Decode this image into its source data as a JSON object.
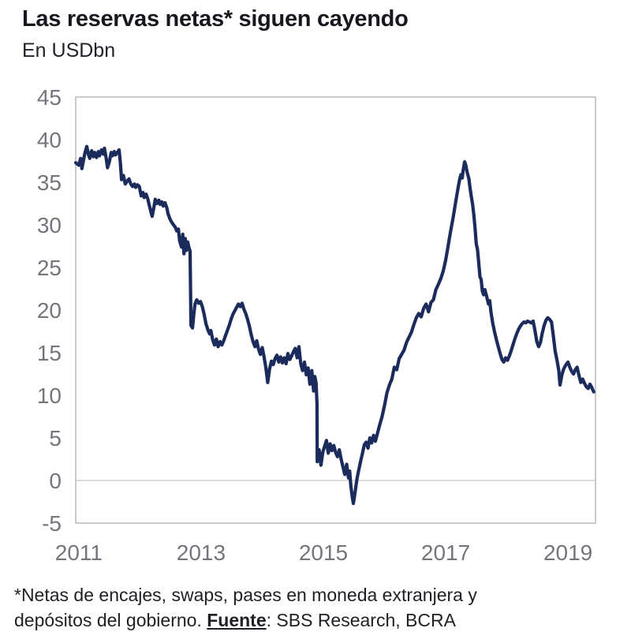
{
  "header": {
    "title": "Las reservas netas* siguen cayendo",
    "subtitle": "En USDbn"
  },
  "footnote": {
    "line1": "*Netas de encajes, swaps, pases en moneda extranjera y",
    "line2_before": "depósitos del gobierno. ",
    "source_label": "Fuente",
    "line2_after": ": SBS Research, BCRA"
  },
  "colors": {
    "line": "#1b2c5c",
    "plot_border": "#bdbdbd",
    "zero_gridline": "#cfcfcf",
    "tick_label": "#75757d",
    "title_text": "#17171f",
    "background": "#ffffff"
  },
  "chart_data": {
    "type": "line",
    "title": "Las reservas netas* siguen cayendo",
    "unit": "En USDbn",
    "xlabel": "",
    "ylabel": "",
    "xlim": [
      2010.95,
      2019.45
    ],
    "ylim": [
      -5,
      45
    ],
    "yticks": [
      45,
      40,
      35,
      30,
      25,
      20,
      15,
      10,
      5,
      0,
      -5
    ],
    "xticks": [
      2011,
      2013,
      2015,
      2017,
      2019
    ],
    "grid": "horizontal line at 0 only",
    "legend": "none",
    "series": [
      {
        "name": "Reservas netas (USDbn)",
        "points": [
          [
            2010.95,
            37.3
          ],
          [
            2011.0,
            37.0
          ],
          [
            2011.03,
            37.8
          ],
          [
            2011.05,
            36.6
          ],
          [
            2011.08,
            37.7
          ],
          [
            2011.1,
            38.4
          ],
          [
            2011.13,
            39.2
          ],
          [
            2011.16,
            38.2
          ],
          [
            2011.18,
            37.8
          ],
          [
            2011.21,
            38.7
          ],
          [
            2011.24,
            38.0
          ],
          [
            2011.26,
            38.5
          ],
          [
            2011.29,
            37.9
          ],
          [
            2011.32,
            38.6
          ],
          [
            2011.34,
            38.1
          ],
          [
            2011.37,
            38.8
          ],
          [
            2011.4,
            38.3
          ],
          [
            2011.42,
            39.0
          ],
          [
            2011.45,
            37.7
          ],
          [
            2011.47,
            36.7
          ],
          [
            2011.5,
            37.4
          ],
          [
            2011.53,
            38.5
          ],
          [
            2011.55,
            38.1
          ],
          [
            2011.58,
            38.6
          ],
          [
            2011.6,
            38.2
          ],
          [
            2011.63,
            38.5
          ],
          [
            2011.66,
            38.8
          ],
          [
            2011.68,
            37.3
          ],
          [
            2011.7,
            35.3
          ],
          [
            2011.73,
            35.8
          ],
          [
            2011.76,
            34.8
          ],
          [
            2011.79,
            35.1
          ],
          [
            2011.82,
            35.4
          ],
          [
            2011.85,
            34.8
          ],
          [
            2011.88,
            34.5
          ],
          [
            2011.91,
            34.8
          ],
          [
            2011.93,
            34.4
          ],
          [
            2011.96,
            34.7
          ],
          [
            2011.99,
            34.5
          ],
          [
            2012.02,
            33.4
          ],
          [
            2012.05,
            33.8
          ],
          [
            2012.07,
            33.2
          ],
          [
            2012.1,
            33.6
          ],
          [
            2012.13,
            33.0
          ],
          [
            2012.15,
            32.4
          ],
          [
            2012.18,
            31.5
          ],
          [
            2012.2,
            31.0
          ],
          [
            2012.23,
            32.1
          ],
          [
            2012.25,
            33.0
          ],
          [
            2012.28,
            32.5
          ],
          [
            2012.31,
            32.9
          ],
          [
            2012.33,
            32.4
          ],
          [
            2012.36,
            32.7
          ],
          [
            2012.38,
            32.2
          ],
          [
            2012.41,
            32.6
          ],
          [
            2012.44,
            32.0
          ],
          [
            2012.46,
            31.3
          ],
          [
            2012.49,
            30.7
          ],
          [
            2012.52,
            30.3
          ],
          [
            2012.55,
            30.0
          ],
          [
            2012.58,
            29.7
          ],
          [
            2012.6,
            29.3
          ],
          [
            2012.63,
            29.5
          ],
          [
            2012.65,
            28.1
          ],
          [
            2012.68,
            27.4
          ],
          [
            2012.7,
            28.9
          ],
          [
            2012.72,
            26.6
          ],
          [
            2012.74,
            28.4
          ],
          [
            2012.76,
            27.0
          ],
          [
            2012.78,
            28.0
          ],
          [
            2012.8,
            27.4
          ],
          [
            2012.82,
            26.9
          ],
          [
            2012.835,
            18.2
          ],
          [
            2012.86,
            17.9
          ],
          [
            2012.88,
            19.4
          ],
          [
            2012.9,
            20.7
          ],
          [
            2012.93,
            21.2
          ],
          [
            2012.96,
            20.8
          ],
          [
            2012.99,
            21.0
          ],
          [
            2013.02,
            20.4
          ],
          [
            2013.05,
            19.5
          ],
          [
            2013.08,
            18.4
          ],
          [
            2013.11,
            17.7
          ],
          [
            2013.14,
            17.2
          ],
          [
            2013.16,
            17.6
          ],
          [
            2013.19,
            16.5
          ],
          [
            2013.22,
            15.9
          ],
          [
            2013.25,
            16.6
          ],
          [
            2013.28,
            15.7
          ],
          [
            2013.31,
            16.3
          ],
          [
            2013.34,
            15.9
          ],
          [
            2013.37,
            16.4
          ],
          [
            2013.4,
            17.0
          ],
          [
            2013.43,
            17.6
          ],
          [
            2013.46,
            18.2
          ],
          [
            2013.49,
            18.9
          ],
          [
            2013.52,
            19.5
          ],
          [
            2013.55,
            19.9
          ],
          [
            2013.58,
            20.3
          ],
          [
            2013.61,
            20.7
          ],
          [
            2013.64,
            20.4
          ],
          [
            2013.67,
            20.8
          ],
          [
            2013.7,
            20.1
          ],
          [
            2013.73,
            19.6
          ],
          [
            2013.76,
            18.9
          ],
          [
            2013.79,
            18.1
          ],
          [
            2013.82,
            17.1
          ],
          [
            2013.85,
            16.3
          ],
          [
            2013.88,
            15.7
          ],
          [
            2013.91,
            16.4
          ],
          [
            2013.94,
            15.4
          ],
          [
            2013.97,
            14.8
          ],
          [
            2014.0,
            15.6
          ],
          [
            2014.03,
            14.5
          ],
          [
            2014.06,
            13.2
          ],
          [
            2014.09,
            11.5
          ],
          [
            2014.12,
            13.1
          ],
          [
            2014.15,
            14.0
          ],
          [
            2014.18,
            13.6
          ],
          [
            2014.21,
            14.3
          ],
          [
            2014.24,
            14.7
          ],
          [
            2014.27,
            13.9
          ],
          [
            2014.3,
            14.5
          ],
          [
            2014.33,
            13.8
          ],
          [
            2014.36,
            14.4
          ],
          [
            2014.39,
            13.7
          ],
          [
            2014.42,
            14.9
          ],
          [
            2014.45,
            14.2
          ],
          [
            2014.48,
            14.6
          ],
          [
            2014.51,
            15.1
          ],
          [
            2014.54,
            15.5
          ],
          [
            2014.57,
            14.4
          ],
          [
            2014.6,
            15.7
          ],
          [
            2014.63,
            13.7
          ],
          [
            2014.66,
            12.9
          ],
          [
            2014.69,
            13.9
          ],
          [
            2014.72,
            12.4
          ],
          [
            2014.75,
            13.2
          ],
          [
            2014.78,
            11.3
          ],
          [
            2014.81,
            12.9
          ],
          [
            2014.84,
            10.5
          ],
          [
            2014.86,
            12.2
          ],
          [
            2014.88,
            11.5
          ],
          [
            2014.895,
            9.0
          ],
          [
            2014.9,
            2.2
          ],
          [
            2014.93,
            3.6
          ],
          [
            2014.96,
            1.8
          ],
          [
            2014.99,
            3.3
          ],
          [
            2015.02,
            4.0
          ],
          [
            2015.05,
            4.7
          ],
          [
            2015.08,
            3.2
          ],
          [
            2015.11,
            4.3
          ],
          [
            2015.14,
            3.5
          ],
          [
            2015.17,
            4.1
          ],
          [
            2015.2,
            3.3
          ],
          [
            2015.23,
            2.8
          ],
          [
            2015.26,
            3.6
          ],
          [
            2015.29,
            2.5
          ],
          [
            2015.32,
            1.6
          ],
          [
            2015.35,
            0.7
          ],
          [
            2015.38,
            1.9
          ],
          [
            2015.41,
            0.3
          ],
          [
            2015.43,
            1.1
          ],
          [
            2015.45,
            -0.7
          ],
          [
            2015.47,
            -1.8
          ],
          [
            2015.49,
            -2.7
          ],
          [
            2015.52,
            -1.3
          ],
          [
            2015.55,
            0.2
          ],
          [
            2015.58,
            1.3
          ],
          [
            2015.61,
            2.3
          ],
          [
            2015.64,
            3.2
          ],
          [
            2015.67,
            4.2
          ],
          [
            2015.7,
            4.5
          ],
          [
            2015.73,
            3.8
          ],
          [
            2015.76,
            5.0
          ],
          [
            2015.79,
            4.4
          ],
          [
            2015.82,
            5.3
          ],
          [
            2015.85,
            4.6
          ],
          [
            2015.88,
            5.4
          ],
          [
            2015.92,
            6.5
          ],
          [
            2015.96,
            7.5
          ],
          [
            2016.0,
            8.8
          ],
          [
            2016.04,
            10.3
          ],
          [
            2016.08,
            11.2
          ],
          [
            2016.12,
            11.9
          ],
          [
            2016.16,
            13.3
          ],
          [
            2016.2,
            13.0
          ],
          [
            2016.24,
            14.3
          ],
          [
            2016.28,
            14.8
          ],
          [
            2016.32,
            15.3
          ],
          [
            2016.36,
            16.2
          ],
          [
            2016.4,
            16.8
          ],
          [
            2016.44,
            17.4
          ],
          [
            2016.48,
            18.3
          ],
          [
            2016.52,
            19.1
          ],
          [
            2016.56,
            19.6
          ],
          [
            2016.6,
            19.2
          ],
          [
            2016.64,
            20.2
          ],
          [
            2016.68,
            20.7
          ],
          [
            2016.72,
            19.8
          ],
          [
            2016.76,
            20.9
          ],
          [
            2016.8,
            21.2
          ],
          [
            2016.84,
            22.4
          ],
          [
            2016.88,
            23.0
          ],
          [
            2016.92,
            23.7
          ],
          [
            2016.96,
            24.6
          ],
          [
            2017.0,
            25.9
          ],
          [
            2017.03,
            27.1
          ],
          [
            2017.06,
            28.4
          ],
          [
            2017.09,
            29.6
          ],
          [
            2017.12,
            30.8
          ],
          [
            2017.15,
            32.1
          ],
          [
            2017.18,
            33.4
          ],
          [
            2017.21,
            34.6
          ],
          [
            2017.23,
            35.4
          ],
          [
            2017.25,
            35.9
          ],
          [
            2017.27,
            35.5
          ],
          [
            2017.29,
            36.6
          ],
          [
            2017.31,
            37.4
          ],
          [
            2017.33,
            37.0
          ],
          [
            2017.35,
            36.2
          ],
          [
            2017.38,
            35.4
          ],
          [
            2017.4,
            34.2
          ],
          [
            2017.42,
            33.3
          ],
          [
            2017.44,
            32.4
          ],
          [
            2017.46,
            31.2
          ],
          [
            2017.48,
            29.6
          ],
          [
            2017.5,
            27.8
          ],
          [
            2017.52,
            27.1
          ],
          [
            2017.54,
            25.6
          ],
          [
            2017.56,
            23.9
          ],
          [
            2017.58,
            23.6
          ],
          [
            2017.6,
            22.2
          ],
          [
            2017.62,
            21.8
          ],
          [
            2017.64,
            22.4
          ],
          [
            2017.67,
            21.6
          ],
          [
            2017.7,
            20.7
          ],
          [
            2017.72,
            21.1
          ],
          [
            2017.74,
            19.8
          ],
          [
            2017.77,
            18.4
          ],
          [
            2017.8,
            17.4
          ],
          [
            2017.83,
            16.5
          ],
          [
            2017.86,
            15.7
          ],
          [
            2017.89,
            14.9
          ],
          [
            2017.92,
            14.2
          ],
          [
            2017.95,
            13.9
          ],
          [
            2017.98,
            14.4
          ],
          [
            2018.01,
            14.1
          ],
          [
            2018.04,
            14.6
          ],
          [
            2018.07,
            15.2
          ],
          [
            2018.1,
            15.9
          ],
          [
            2018.13,
            16.6
          ],
          [
            2018.16,
            17.2
          ],
          [
            2018.19,
            17.7
          ],
          [
            2018.22,
            18.1
          ],
          [
            2018.25,
            18.4
          ],
          [
            2018.28,
            18.6
          ],
          [
            2018.31,
            18.5
          ],
          [
            2018.34,
            18.7
          ],
          [
            2018.37,
            18.6
          ],
          [
            2018.4,
            18.5
          ],
          [
            2018.43,
            18.7
          ],
          [
            2018.46,
            17.6
          ],
          [
            2018.49,
            16.3
          ],
          [
            2018.52,
            15.7
          ],
          [
            2018.55,
            16.2
          ],
          [
            2018.58,
            17.3
          ],
          [
            2018.61,
            18.2
          ],
          [
            2018.64,
            18.8
          ],
          [
            2018.67,
            19.1
          ],
          [
            2018.7,
            18.9
          ],
          [
            2018.73,
            18.6
          ],
          [
            2018.76,
            17.0
          ],
          [
            2018.79,
            15.2
          ],
          [
            2018.82,
            14.1
          ],
          [
            2018.85,
            12.9
          ],
          [
            2018.87,
            11.2
          ],
          [
            2018.9,
            12.4
          ],
          [
            2018.93,
            13.1
          ],
          [
            2018.96,
            13.5
          ],
          [
            2019.0,
            13.9
          ],
          [
            2019.03,
            13.3
          ],
          [
            2019.06,
            12.8
          ],
          [
            2019.09,
            12.5
          ],
          [
            2019.12,
            13.0
          ],
          [
            2019.15,
            13.3
          ],
          [
            2019.18,
            12.3
          ],
          [
            2019.21,
            11.5
          ],
          [
            2019.24,
            11.9
          ],
          [
            2019.27,
            11.4
          ],
          [
            2019.3,
            11.0
          ],
          [
            2019.33,
            10.8
          ],
          [
            2019.36,
            11.3
          ],
          [
            2019.39,
            10.9
          ],
          [
            2019.42,
            10.4
          ]
        ]
      }
    ]
  }
}
